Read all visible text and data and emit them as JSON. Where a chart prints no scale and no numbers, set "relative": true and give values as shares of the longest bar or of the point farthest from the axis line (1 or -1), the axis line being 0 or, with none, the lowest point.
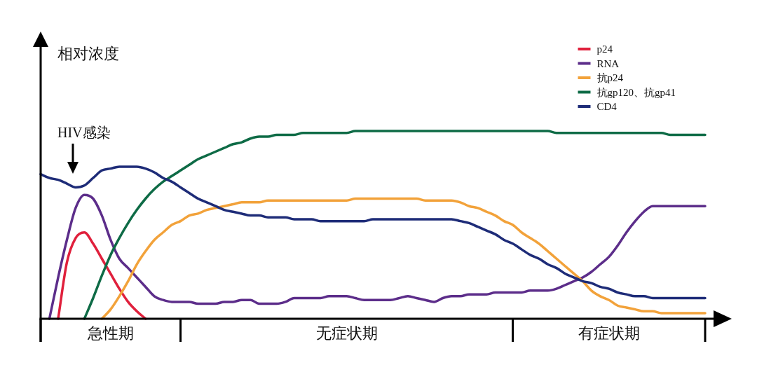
{
  "chart_data": {
    "type": "line",
    "relative": true,
    "ylabel": "相对浓度",
    "categories": [
      null,
      null,
      null,
      null,
      null,
      null,
      null,
      null,
      "急性期",
      null,
      null,
      null,
      null,
      null,
      null,
      null,
      null,
      null,
      null,
      null,
      null,
      null,
      null,
      null,
      null,
      null,
      null,
      null,
      null,
      null,
      null,
      null,
      null,
      null,
      null,
      "无症状期",
      null,
      null,
      null,
      null,
      null,
      null,
      null,
      null,
      null,
      null,
      null,
      null,
      null,
      null,
      null,
      null,
      null,
      null,
      null,
      null,
      null,
      null,
      null,
      null,
      null,
      null,
      null,
      null,
      null,
      "有症状期",
      null,
      null,
      null,
      null,
      null,
      null,
      null,
      null,
      null,
      null,
      null
    ],
    "annotations": [
      "HIV感染"
    ],
    "legend": "top right",
    "line_style": "solid",
    "series": [
      {
        "name": "p24",
        "color": "#e0203c",
        "values": [
          null,
          null,
          0,
          0.3,
          0.43,
          0.46,
          0.4,
          0.32,
          0.24,
          0.16,
          0.09,
          0.04,
          0,
          null,
          null,
          null,
          null,
          null,
          null,
          null,
          null,
          null,
          null,
          null,
          null,
          null,
          null,
          null,
          null,
          null,
          null,
          null,
          null,
          null,
          null,
          null,
          null,
          null,
          null,
          null,
          null,
          null,
          null,
          null,
          null,
          null,
          null,
          null,
          null,
          null,
          null,
          null,
          null,
          null,
          null,
          null,
          null,
          null,
          null,
          null,
          null,
          null,
          null,
          null,
          null,
          null,
          null,
          null,
          null,
          null,
          null,
          null,
          null,
          null,
          null,
          null,
          null
        ]
      },
      {
        "name": "RNA",
        "color": "#5c2d8a",
        "values": [
          null,
          0,
          0.22,
          0.42,
          0.59,
          0.66,
          0.64,
          0.55,
          0.42,
          0.32,
          0.27,
          0.22,
          0.17,
          0.12,
          0.1,
          0.09,
          0.09,
          0.09,
          0.08,
          0.08,
          0.08,
          0.09,
          0.09,
          0.1,
          0.1,
          0.08,
          0.08,
          0.08,
          0.09,
          0.11,
          0.11,
          0.11,
          0.11,
          0.12,
          0.12,
          0.12,
          0.11,
          0.1,
          0.1,
          0.1,
          0.1,
          0.11,
          0.12,
          0.11,
          0.1,
          0.09,
          0.11,
          0.12,
          0.12,
          0.13,
          0.13,
          0.13,
          0.14,
          0.14,
          0.14,
          0.14,
          0.15,
          0.15,
          0.15,
          0.16,
          0.18,
          0.2,
          0.22,
          0.25,
          0.29,
          0.33,
          0.39,
          0.46,
          0.52,
          0.57,
          0.6,
          0.6,
          0.6,
          0.6,
          0.6,
          0.6,
          0.6
        ]
      },
      {
        "name": "抗p24",
        "color": "#f2a23a",
        "values": [
          null,
          null,
          null,
          null,
          null,
          null,
          null,
          0,
          0.05,
          0.12,
          0.2,
          0.29,
          0.36,
          0.42,
          0.46,
          0.5,
          0.52,
          0.55,
          0.56,
          0.58,
          0.59,
          0.6,
          0.61,
          0.62,
          0.62,
          0.62,
          0.63,
          0.63,
          0.63,
          0.63,
          0.63,
          0.63,
          0.63,
          0.63,
          0.63,
          0.63,
          0.64,
          0.64,
          0.64,
          0.64,
          0.64,
          0.64,
          0.64,
          0.64,
          0.63,
          0.63,
          0.63,
          0.63,
          0.62,
          0.6,
          0.59,
          0.57,
          0.55,
          0.52,
          0.5,
          0.46,
          0.43,
          0.4,
          0.36,
          0.32,
          0.28,
          0.24,
          0.2,
          0.15,
          0.12,
          0.1,
          0.07,
          0.06,
          0.05,
          0.04,
          0.04,
          0.03,
          0.03,
          0.03,
          0.03,
          0.03,
          0.03
        ]
      },
      {
        "name": "抗gp120、抗gp41",
        "color": "#0e6b46",
        "values": [
          null,
          null,
          null,
          null,
          null,
          0,
          0.11,
          0.23,
          0.34,
          0.43,
          0.51,
          0.58,
          0.64,
          0.69,
          0.73,
          0.76,
          0.79,
          0.82,
          0.85,
          0.87,
          0.89,
          0.91,
          0.93,
          0.94,
          0.96,
          0.97,
          0.97,
          0.98,
          0.98,
          0.98,
          0.99,
          0.99,
          0.99,
          0.99,
          0.99,
          0.99,
          1,
          1,
          1,
          1,
          1,
          1,
          1,
          1,
          1,
          1,
          1,
          1,
          1,
          1,
          1,
          1,
          1,
          1,
          1,
          1,
          1,
          1,
          1,
          0.99,
          0.99,
          0.99,
          0.99,
          0.99,
          0.99,
          0.99,
          0.99,
          0.99,
          0.99,
          0.99,
          0.99,
          0.99,
          0.98,
          0.98,
          0.98,
          0.98,
          0.98
        ]
      },
      {
        "name": "CD4",
        "color": "#1e2c78",
        "values": [
          0.77,
          0.75,
          0.74,
          0.72,
          0.7,
          0.71,
          0.75,
          0.79,
          0.8,
          0.81,
          0.81,
          0.81,
          0.8,
          0.78,
          0.75,
          0.73,
          0.7,
          0.67,
          0.64,
          0.62,
          0.6,
          0.58,
          0.57,
          0.56,
          0.55,
          0.55,
          0.54,
          0.54,
          0.54,
          0.53,
          0.53,
          0.53,
          0.52,
          0.52,
          0.52,
          0.52,
          0.52,
          0.52,
          0.53,
          0.53,
          0.53,
          0.53,
          0.53,
          0.53,
          0.53,
          0.53,
          0.53,
          0.53,
          0.52,
          0.51,
          0.49,
          0.47,
          0.45,
          0.42,
          0.4,
          0.37,
          0.34,
          0.32,
          0.29,
          0.27,
          0.24,
          0.22,
          0.2,
          0.19,
          0.17,
          0.16,
          0.14,
          0.13,
          0.12,
          0.12,
          0.11,
          0.11,
          0.11,
          0.11,
          0.11,
          0.11,
          0.11
        ]
      }
    ]
  }
}
